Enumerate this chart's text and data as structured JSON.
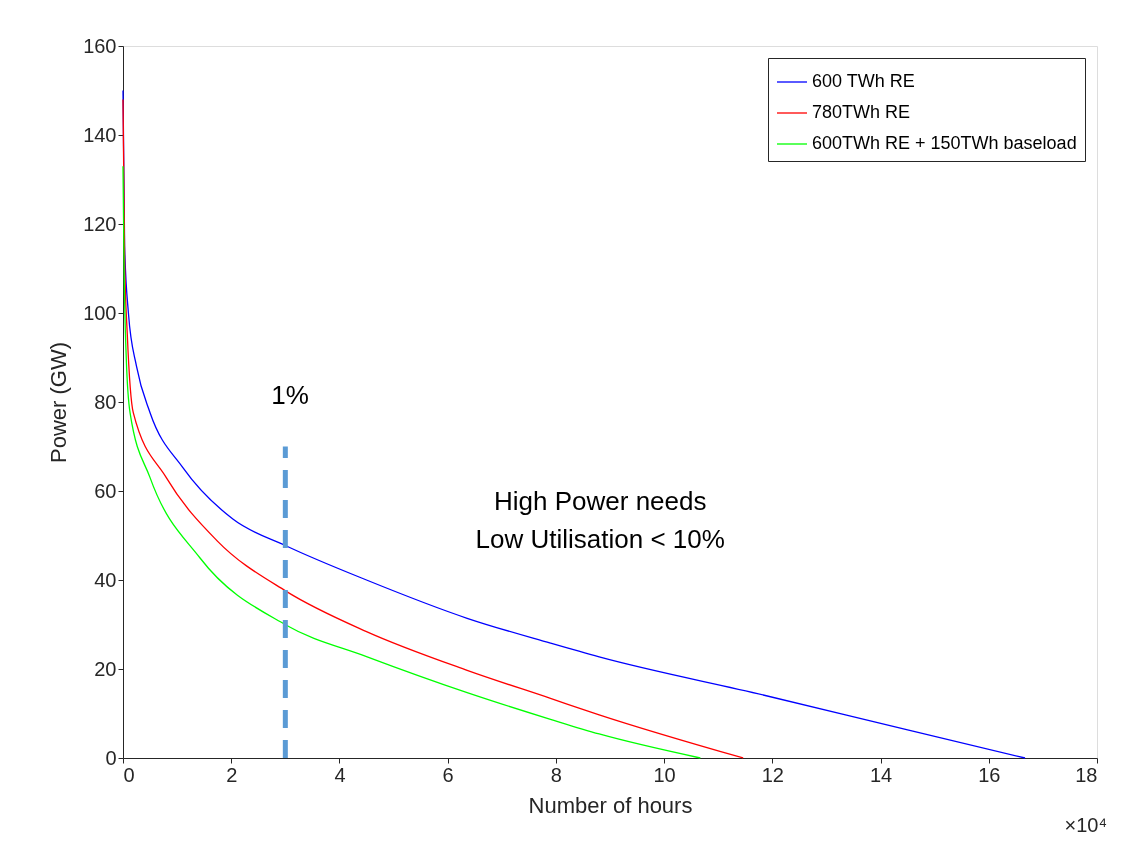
{
  "chart_data": {
    "type": "line",
    "xlabel": "Number of hours",
    "ylabel": "Power (GW)",
    "xlim": [
      0,
      18
    ],
    "xticks": [
      0,
      2,
      4,
      6,
      8,
      10,
      12,
      14,
      16,
      18
    ],
    "ylim": [
      0,
      160
    ],
    "yticks": [
      0,
      20,
      40,
      60,
      80,
      100,
      120,
      140,
      160
    ],
    "grid": false,
    "legend": "top right",
    "marker": "none",
    "line_style": "solid",
    "series": [
      {
        "name": "600 TWh RE",
        "color": "#0000ff",
        "x": [
          0,
          0.03,
          0.1,
          0.25,
          0.5,
          1.11,
          2.03,
          3.01,
          4.5,
          6.36,
          7.9,
          8.8,
          11.85,
          14.5,
          16.67
        ],
        "values": [
          150,
          115,
          100,
          88,
          77.6,
          65.2,
          53.7,
          47.7,
          40,
          31.4,
          25.8,
          22.7,
          14.1,
          6.3,
          0
        ]
      },
      {
        "name": "780TWh RE",
        "color": "#ff0000",
        "x": [
          0,
          0.03,
          0.08,
          0.19,
          0.8,
          1.74,
          3.01,
          4.5,
          6.36,
          7.9,
          8.8,
          11.46
        ],
        "values": [
          148,
          112,
          95,
          77.6,
          63,
          48.8,
          37.5,
          28.4,
          19.7,
          13.4,
          9.7,
          0
        ]
      },
      {
        "name": "600TWh RE + 150TWh baseload",
        "color": "#00ff00",
        "x": [
          0,
          0.02,
          0.06,
          0.13,
          0.5,
          1.42,
          3.01,
          4.5,
          6.36,
          7.9,
          8.8,
          10.67
        ],
        "values": [
          133,
          110,
          90,
          77.6,
          63,
          45,
          29.9,
          22.8,
          14.7,
          8.7,
          5.4,
          0
        ]
      },
      {
        "color": "#5b9bd5",
        "line_style": "dashed",
        "x": [
          3,
          3
        ],
        "values": [
          0,
          70
        ]
      }
    ],
    "annotations": [
      "1%",
      "High Power needs\nLow Utilisation < 10%",
      "×10⁴"
    ]
  }
}
